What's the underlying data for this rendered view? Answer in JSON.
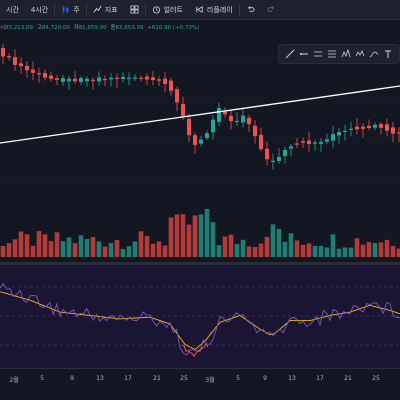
{
  "toolbar": {
    "interval_prev": "시간",
    "interval": "4시간",
    "chart_style": "주",
    "indicators": "지표",
    "alert": "얼러트",
    "replay": "리플레이"
  },
  "ohlc": {
    "open_label": "시",
    "open": "83,213.09",
    "high_label": "고",
    "high": "84,720.00",
    "low_label": "저",
    "low": "81,659.00",
    "close_label": "종",
    "close": "83,853.99",
    "change": "+610.90 (+0.73%)"
  },
  "colors": {
    "up": "#26a69a",
    "down": "#ef5350",
    "background": "#131722",
    "rsi_background": "#1a1533",
    "rsi_line": "#7e57c2",
    "rsi_ma": "#f0b90b",
    "trendline": "#ffffff"
  },
  "drawing_tools": [
    "trend-line-icon",
    "horizontal-line-icon",
    "ray-icon",
    "fib-icon",
    "pattern-icon",
    "elliott-icon",
    "brush-icon",
    "text-icon"
  ],
  "time_axis": {
    "labels": [
      "2월",
      "5",
      "9",
      "13",
      "17",
      "21",
      "25",
      "3월",
      "5",
      "9",
      "13",
      "17",
      "21",
      "25"
    ]
  },
  "chart_data": {
    "type": "candlestick",
    "title": "",
    "xlabel": "",
    "ylabel": "",
    "indicators": [
      "volume",
      "RSI"
    ],
    "trendline": true
  }
}
